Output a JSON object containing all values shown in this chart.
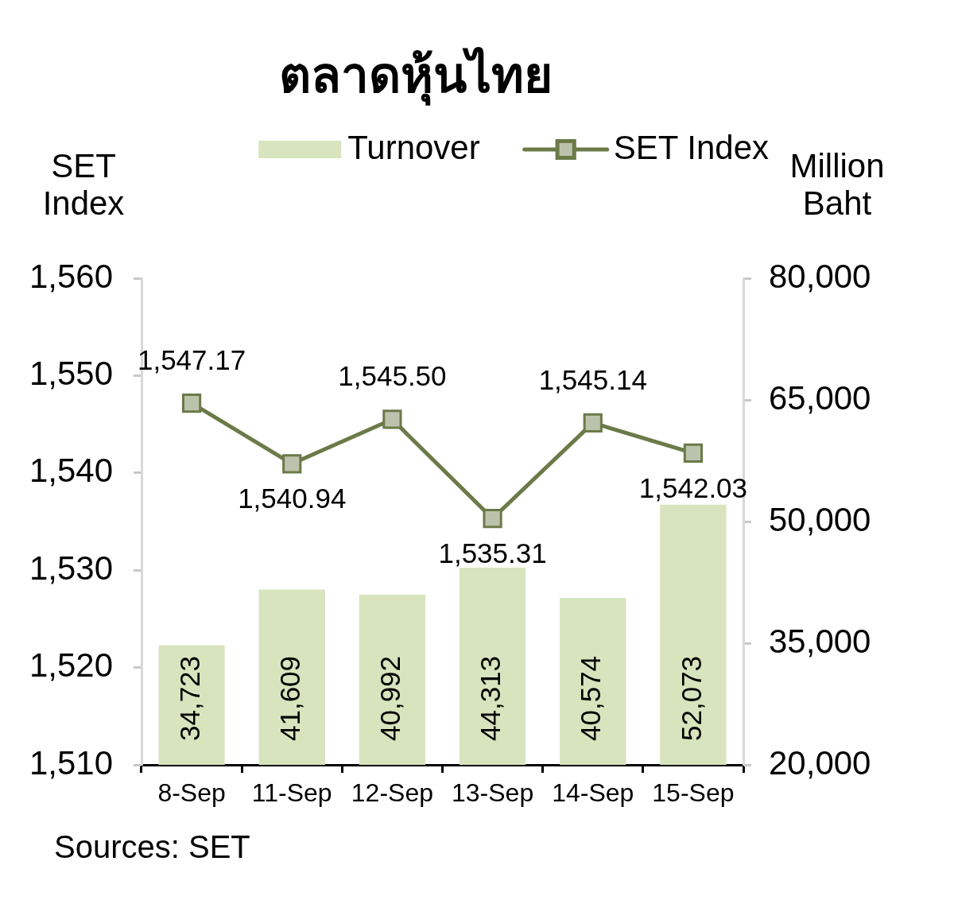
{
  "chart_data": {
    "type": "bar",
    "title": "ตลาดหุ้นไทย",
    "ylabel": "SET Index",
    "y2label": "Million Baht",
    "categories": [
      "8-Sep",
      "11-Sep",
      "12-Sep",
      "13-Sep",
      "14-Sep",
      "15-Sep"
    ],
    "series": [
      {
        "name": "Turnover",
        "axis": "y2",
        "color": "#d7e4bd",
        "values": [
          34723,
          41609,
          40992,
          44313,
          40574,
          52073
        ],
        "value_labels": [
          "34,723",
          "41,609",
          "40,992",
          "44,313",
          "40,574",
          "52,073"
        ]
      },
      {
        "name": "SET Index",
        "type": "line",
        "color": "#6b7a48",
        "values": [
          1547.17,
          1540.94,
          1545.5,
          1535.31,
          1545.14,
          1542.03
        ],
        "value_labels": [
          "1,547.17",
          "1,540.94",
          "1,545.50",
          "1,535.31",
          "1,545.14",
          "1,542.03"
        ]
      }
    ],
    "ylim": [
      1510,
      1560
    ],
    "yticks": [
      {
        "value": 1510,
        "label": "1,510"
      },
      {
        "value": 1520,
        "label": "1,520"
      },
      {
        "value": 1530,
        "label": "1,530"
      },
      {
        "value": 1540,
        "label": "1,540"
      },
      {
        "value": 1550,
        "label": "1,550"
      },
      {
        "value": 1560,
        "label": "1,560"
      }
    ],
    "y2lim": [
      20000,
      80000
    ],
    "y2ticks": [
      {
        "value": 20000,
        "label": "20,000"
      },
      {
        "value": 35000,
        "label": "35,000"
      },
      {
        "value": 50000,
        "label": "50,000"
      },
      {
        "value": 65000,
        "label": "65,000"
      },
      {
        "value": 80000,
        "label": "80,000"
      }
    ],
    "grid": false,
    "legend": "top",
    "marker": "square",
    "annotations": [
      "Sources: SET"
    ]
  }
}
